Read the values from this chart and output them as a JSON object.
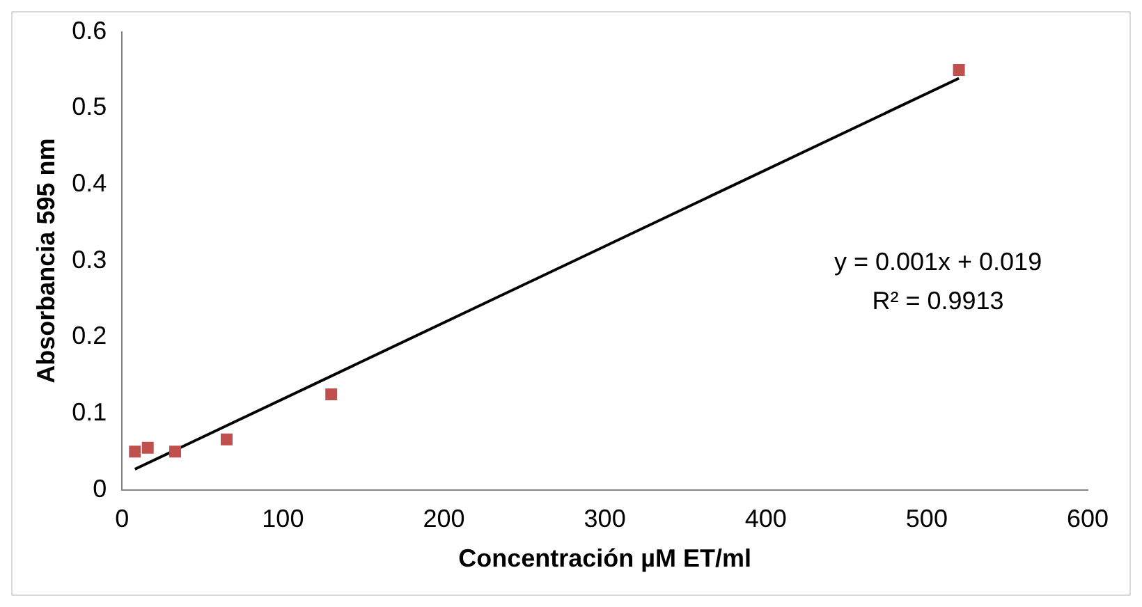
{
  "chart_data": {
    "type": "scatter",
    "xlabel": "Concentración µM ET/ml",
    "ylabel": "Absorbancia 595 nm",
    "xlim": [
      0,
      600
    ],
    "xticks": [
      0,
      100,
      200,
      300,
      400,
      500,
      600
    ],
    "ylim": [
      0,
      0.6
    ],
    "yticks": [
      0,
      0.1,
      0.2,
      0.3,
      0.4,
      0.5,
      0.6
    ],
    "grid": false,
    "legend": false,
    "marker": "square",
    "series": [
      {
        "type": "scatter",
        "color": "#c0504d",
        "x": [
          8,
          16,
          33,
          65,
          130,
          520
        ],
        "values": [
          0.05,
          0.055,
          0.05,
          0.066,
          0.125,
          0.55
        ]
      },
      {
        "type": "line",
        "color": "#000000",
        "marker": "none",
        "line_style": "solid",
        "x": [
          8,
          520
        ],
        "values": [
          0.027,
          0.539
        ]
      }
    ],
    "annotations": [
      "y = 0.001x + 0.019",
      "R² = 0.9913"
    ]
  }
}
